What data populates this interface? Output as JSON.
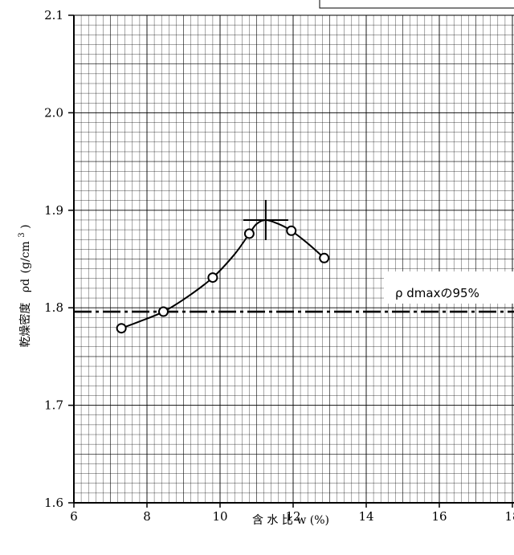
{
  "chart_data": {
    "type": "line",
    "xlabel": "含 水 比 w (%)",
    "ylabel": "乾燥密度 ρd (g/cm³)",
    "ylabel_parts": {
      "main": "乾燥密度",
      "symbol": "ρd",
      "unit_open": "(g/cm",
      "unit_exp": "3",
      "unit_close": ")"
    },
    "xlim": [
      6,
      18
    ],
    "ylim": [
      1.6,
      2.1
    ],
    "x_ticks": [
      6,
      8,
      10,
      12,
      14,
      16,
      18
    ],
    "x_tick_labels": [
      "6",
      "8",
      "10",
      "12",
      "14",
      "16",
      "18"
    ],
    "y_ticks": [
      1.6,
      1.7,
      1.8,
      1.9,
      2.0,
      2.1
    ],
    "y_tick_labels": [
      "1.6",
      "1.7",
      "1.8",
      "1.9",
      "2.0",
      "2.1"
    ],
    "grid": true,
    "series": [
      {
        "values_x": [
          7.3,
          8.45,
          9.8,
          10.8,
          11.95,
          12.85
        ],
        "values_y": [
          1.779,
          1.796,
          1.831,
          1.876,
          1.879,
          1.851
        ],
        "marker": "open-circle",
        "color": "#000000"
      }
    ],
    "curve": {
      "x": [
        7.3,
        7.8,
        8.45,
        9.1,
        9.8,
        10.4,
        10.8,
        11.0,
        11.25,
        11.6,
        11.95,
        12.4,
        12.85
      ],
      "y": [
        1.779,
        1.786,
        1.796,
        1.811,
        1.831,
        1.855,
        1.876,
        1.886,
        1.89,
        1.886,
        1.879,
        1.866,
        1.851
      ]
    },
    "peak": {
      "x": 11.25,
      "y": 1.89
    },
    "reference_line": {
      "y": 1.796,
      "style": "dash-dot",
      "label": "ρ dmaxの95%"
    }
  }
}
